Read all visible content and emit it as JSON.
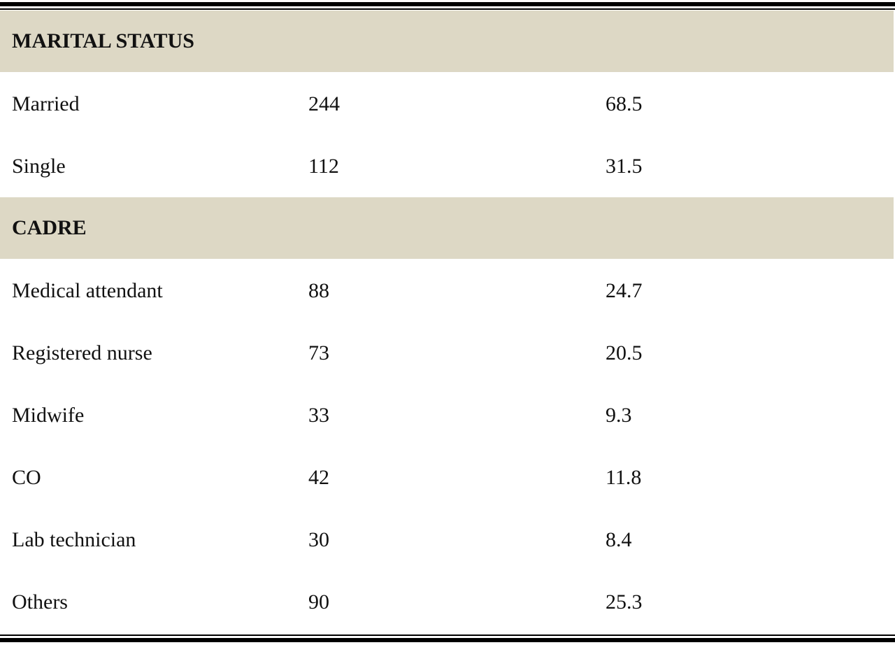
{
  "table": {
    "sections": [
      {
        "title": "MARITAL STATUS",
        "rows": [
          [
            "Married",
            244,
            68.5
          ],
          [
            "Single",
            112,
            31.5
          ]
        ]
      },
      {
        "title": "CADRE",
        "rows": [
          [
            "Medical attendant",
            88,
            24.7
          ],
          [
            "Registered nurse",
            73,
            20.5
          ],
          [
            "Midwife",
            33,
            9.3
          ],
          [
            "CO",
            42,
            11.8
          ],
          [
            "Lab technician",
            30,
            8.4
          ],
          [
            "Others",
            90,
            25.3
          ]
        ]
      }
    ]
  }
}
